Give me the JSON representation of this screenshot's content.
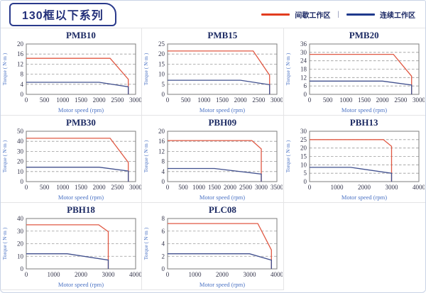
{
  "header": {
    "title": "130框以下系列"
  },
  "legend": {
    "items": [
      {
        "label": "间歇工作区",
        "color": "#e23c1e"
      },
      {
        "label": "连续工作区",
        "color": "#1f3a8c"
      }
    ],
    "separator": "|"
  },
  "style": {
    "curve_red": "#e05843",
    "curve_blue": "#41508e",
    "grid_color": "#9a9a9a",
    "plot_border": "#7d7d7d",
    "tick_color": "#33344a",
    "axis_label_color": "#4a72c4",
    "title_color": "#1c2a63",
    "accent_navy": "#2a3a8c"
  },
  "chart_data": [
    {
      "type": "line",
      "title": "PMB10",
      "xlabel": "Motor speed (rpm)",
      "ylabel": "Torque ( N·m )",
      "xlim": [
        0,
        3000
      ],
      "ylim": [
        0,
        20
      ],
      "xticks": [
        0,
        500,
        1000,
        1500,
        2000,
        2500,
        3000
      ],
      "yticks": [
        0,
        4,
        8,
        12,
        16,
        20
      ],
      "grid": "horizontal-dashed",
      "legend_position": "none",
      "series": [
        {
          "name": "间歇工作区",
          "color": "#e05843",
          "points": [
            [
              0,
              14.3
            ],
            [
              2300,
              14.3
            ],
            [
              2800,
              6
            ],
            [
              2800,
              0
            ]
          ]
        },
        {
          "name": "连续工作区",
          "color": "#41508e",
          "points": [
            [
              0,
              4.8
            ],
            [
              2000,
              4.8
            ],
            [
              2800,
              3
            ],
            [
              2800,
              0
            ]
          ]
        }
      ]
    },
    {
      "type": "line",
      "title": "PMB15",
      "xlabel": "Motor speed (rpm)",
      "ylabel": "Torque ( N·m )",
      "xlim": [
        0,
        3000
      ],
      "ylim": [
        0,
        25
      ],
      "xticks": [
        0,
        500,
        1000,
        1500,
        2000,
        2500,
        3000
      ],
      "yticks": [
        0,
        5,
        10,
        15,
        20,
        25
      ],
      "grid": "horizontal-dashed",
      "legend_position": "none",
      "series": [
        {
          "name": "间歇工作区",
          "color": "#e05843",
          "points": [
            [
              0,
              21.5
            ],
            [
              2350,
              21.5
            ],
            [
              2800,
              9.5
            ],
            [
              2800,
              0
            ]
          ]
        },
        {
          "name": "连续工作区",
          "color": "#41508e",
          "points": [
            [
              0,
              7
            ],
            [
              2000,
              7
            ],
            [
              2800,
              4.8
            ],
            [
              2800,
              0
            ]
          ]
        }
      ]
    },
    {
      "type": "line",
      "title": "PMB20",
      "xlabel": "Motor speed (rpm)",
      "ylabel": "Torque ( N·m )",
      "xlim": [
        0,
        3000
      ],
      "ylim": [
        0,
        36
      ],
      "xticks": [
        0,
        500,
        1000,
        1500,
        2000,
        2500,
        3000
      ],
      "yticks": [
        0,
        6,
        12,
        18,
        24,
        30,
        36
      ],
      "grid": "horizontal-dashed",
      "legend_position": "none",
      "series": [
        {
          "name": "间歇工作区",
          "color": "#e05843",
          "points": [
            [
              0,
              28.6
            ],
            [
              2300,
              28.6
            ],
            [
              2800,
              13
            ],
            [
              2800,
              0
            ]
          ]
        },
        {
          "name": "连续工作区",
          "color": "#41508e",
          "points": [
            [
              0,
              9.5
            ],
            [
              2000,
              9.5
            ],
            [
              2800,
              6.7
            ],
            [
              2800,
              0
            ]
          ]
        }
      ]
    },
    {
      "type": "line",
      "title": "PMB30",
      "xlabel": "Motor speed (rpm)",
      "ylabel": "Torque ( N·m )",
      "xlim": [
        0,
        3000
      ],
      "ylim": [
        0,
        50
      ],
      "xticks": [
        0,
        500,
        1000,
        1500,
        2000,
        2500,
        3000
      ],
      "yticks": [
        0,
        10,
        20,
        30,
        40,
        50
      ],
      "grid": "horizontal-dashed",
      "legend_position": "none",
      "series": [
        {
          "name": "间歇工作区",
          "color": "#e05843",
          "points": [
            [
              0,
              43
            ],
            [
              2300,
              43
            ],
            [
              2800,
              19
            ],
            [
              2800,
              0
            ]
          ]
        },
        {
          "name": "连续工作区",
          "color": "#41508e",
          "points": [
            [
              0,
              14.3
            ],
            [
              2000,
              14.3
            ],
            [
              2800,
              10.5
            ],
            [
              2800,
              0
            ]
          ]
        }
      ]
    },
    {
      "type": "line",
      "title": "PBH09",
      "xlabel": "Motor speed (rpm)",
      "ylabel": "Torque ( N·m )",
      "xlim": [
        0,
        3500
      ],
      "ylim": [
        0,
        20
      ],
      "xticks": [
        0,
        500,
        1000,
        1500,
        2000,
        2500,
        3000,
        3500
      ],
      "yticks": [
        0,
        4,
        8,
        12,
        16,
        20
      ],
      "grid": "horizontal-dashed",
      "legend_position": "none",
      "series": [
        {
          "name": "间歇工作区",
          "color": "#e05843",
          "points": [
            [
              0,
              16.3
            ],
            [
              2700,
              16.3
            ],
            [
              3000,
              13
            ],
            [
              3000,
              0
            ]
          ]
        },
        {
          "name": "连续工作区",
          "color": "#41508e",
          "points": [
            [
              0,
              5.2
            ],
            [
              1500,
              5.2
            ],
            [
              3000,
              3
            ],
            [
              3000,
              0
            ]
          ]
        }
      ]
    },
    {
      "type": "line",
      "title": "PBH13",
      "xlabel": "Motor speed (rpm)",
      "ylabel": "Torque ( N·m )",
      "xlim": [
        0,
        4000
      ],
      "ylim": [
        0,
        30
      ],
      "xticks": [
        0,
        1000,
        2000,
        3000,
        4000
      ],
      "yticks": [
        0,
        5,
        10,
        15,
        20,
        25,
        30
      ],
      "grid": "horizontal-dashed",
      "legend_position": "none",
      "series": [
        {
          "name": "间歇工作区",
          "color": "#e05843",
          "points": [
            [
              0,
              25
            ],
            [
              2700,
              25
            ],
            [
              3000,
              21
            ],
            [
              3000,
              0
            ]
          ]
        },
        {
          "name": "连续工作区",
          "color": "#41508e",
          "points": [
            [
              0,
              8.5
            ],
            [
              1500,
              8.5
            ],
            [
              3000,
              5
            ],
            [
              3000,
              0
            ]
          ]
        }
      ]
    },
    {
      "type": "line",
      "title": "PBH18",
      "xlabel": "Motor speed (rpm)",
      "ylabel": "Torque ( N·m )",
      "xlim": [
        0,
        4000
      ],
      "ylim": [
        0,
        40
      ],
      "xticks": [
        0,
        1000,
        2000,
        3000,
        4000
      ],
      "yticks": [
        0,
        10,
        20,
        30,
        40
      ],
      "grid": "horizontal-dashed",
      "legend_position": "none",
      "series": [
        {
          "name": "间歇工作区",
          "color": "#e05843",
          "points": [
            [
              0,
              35
            ],
            [
              2650,
              35
            ],
            [
              3000,
              29.5
            ],
            [
              3000,
              0
            ]
          ]
        },
        {
          "name": "连续工作区",
          "color": "#41508e",
          "points": [
            [
              0,
              12
            ],
            [
              1500,
              12
            ],
            [
              3000,
              7
            ],
            [
              3000,
              0
            ]
          ]
        }
      ]
    },
    {
      "type": "line",
      "title": "PLC08",
      "xlabel": "Motor speed (rpm)",
      "ylabel": "Torque ( N·m )",
      "xlim": [
        0,
        4000
      ],
      "ylim": [
        0,
        8
      ],
      "xticks": [
        0,
        1000,
        2000,
        3000,
        4000
      ],
      "yticks": [
        0,
        2,
        4,
        6,
        8
      ],
      "grid": "horizontal-dashed",
      "legend_position": "none",
      "series": [
        {
          "name": "间歇工作区",
          "color": "#e05843",
          "points": [
            [
              0,
              7.2
            ],
            [
              3300,
              7.2
            ],
            [
              3800,
              3
            ],
            [
              3800,
              0
            ]
          ]
        },
        {
          "name": "连续工作区",
          "color": "#41508e",
          "points": [
            [
              0,
              2.4
            ],
            [
              3000,
              2.4
            ],
            [
              3800,
              1.4
            ],
            [
              3800,
              0
            ]
          ]
        }
      ]
    }
  ]
}
